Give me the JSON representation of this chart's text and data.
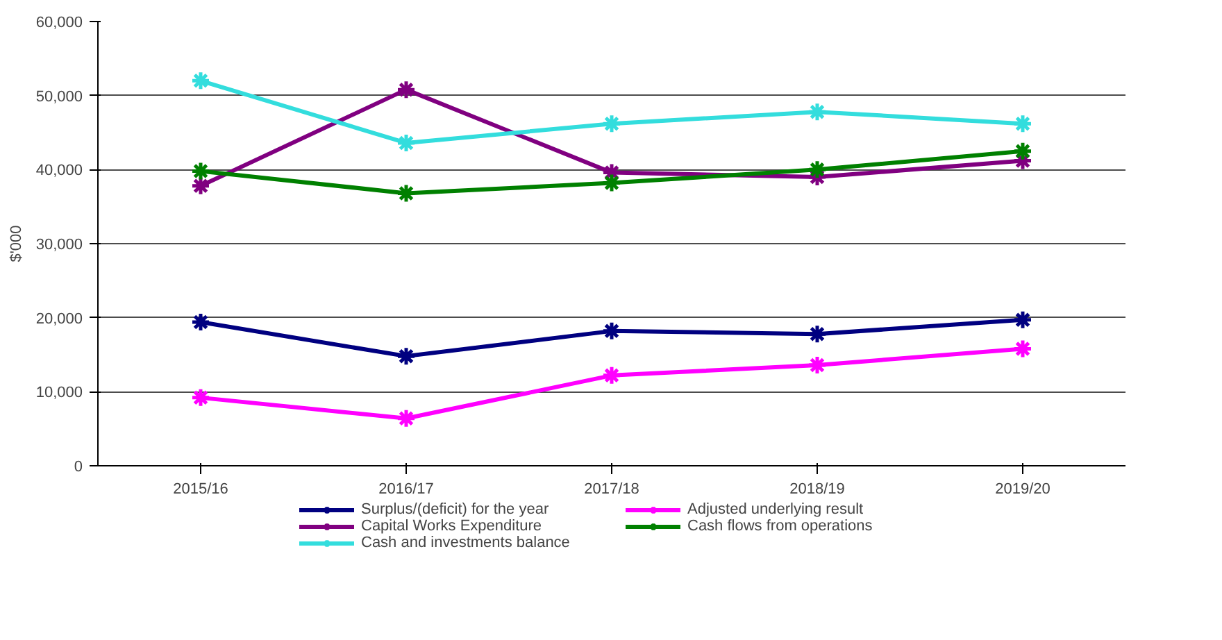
{
  "chart_data": {
    "type": "line",
    "ylabel": "$'000",
    "categories": [
      "2015/16",
      "2016/17",
      "2017/18",
      "2018/19",
      "2019/20"
    ],
    "series": [
      {
        "name": "Surplus/(deficit) for the year",
        "color": "#000080",
        "values": [
          19400,
          14800,
          18200,
          17800,
          19700
        ]
      },
      {
        "name": "Adjusted underlying result",
        "color": "#ff00ff",
        "values": [
          9200,
          6400,
          12200,
          13600,
          15800
        ]
      },
      {
        "name": "Capital Works Expenditure",
        "color": "#800080",
        "values": [
          37800,
          50800,
          39600,
          39000,
          41200
        ]
      },
      {
        "name": "Cash flows from operations",
        "color": "#008000",
        "values": [
          39800,
          36800,
          38200,
          40000,
          42500
        ]
      },
      {
        "name": "Cash and investments balance",
        "color": "#33dddd",
        "values": [
          52000,
          43600,
          46200,
          47800,
          46200
        ]
      }
    ],
    "ylim": [
      0,
      60000
    ],
    "yticks": [
      {
        "value": 0,
        "label": "0"
      },
      {
        "value": 10000,
        "label": "10,000"
      },
      {
        "value": 20000,
        "label": "20,000"
      },
      {
        "value": 30000,
        "label": "30,000"
      },
      {
        "value": 40000,
        "label": "40,000"
      },
      {
        "value": 50000,
        "label": "50,000"
      },
      {
        "value": 60000,
        "label": "60,000"
      }
    ],
    "grid": "y",
    "legend": "bottom",
    "marker": "cross",
    "line_style": "solid"
  }
}
